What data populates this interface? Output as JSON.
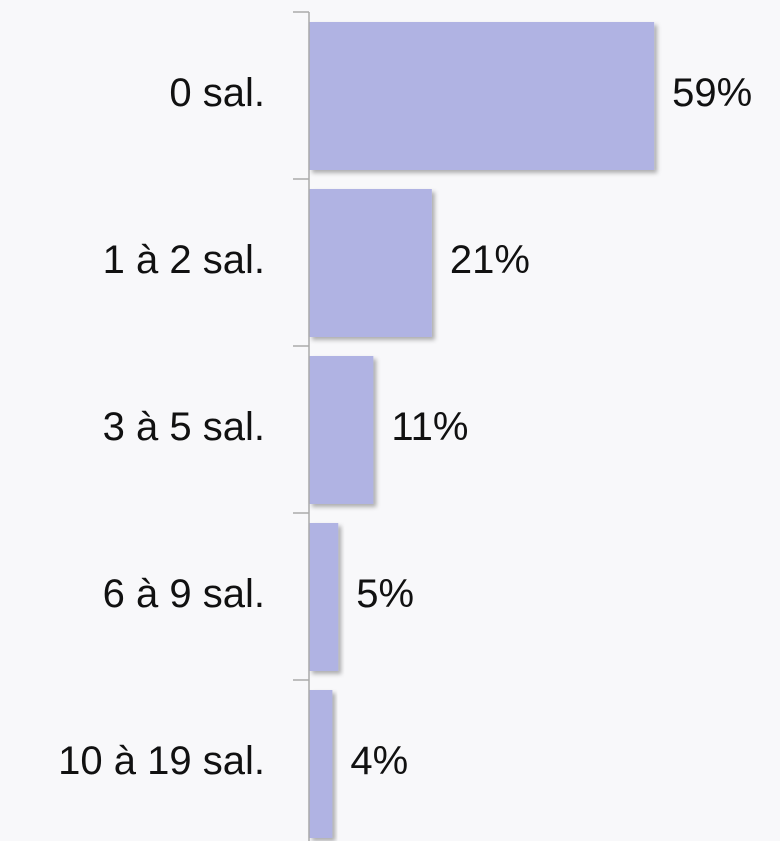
{
  "chart_data": {
    "type": "bar",
    "orientation": "horizontal",
    "categories": [
      "0 sal.",
      "1 à 2 sal.",
      "3 à 5 sal.",
      "6 à 9 sal.",
      "10 à 19 sal."
    ],
    "values": [
      59,
      21,
      11,
      5,
      4
    ],
    "value_labels": [
      "59%",
      "21%",
      "11%",
      "5%",
      "4%"
    ],
    "color": "#b0b3e3"
  }
}
